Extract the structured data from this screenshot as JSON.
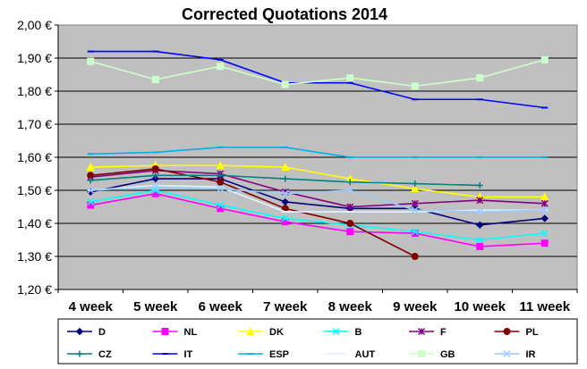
{
  "chart_data": {
    "type": "line",
    "title": "Corrected Quotations 2014",
    "xlabel": "",
    "ylabel": "",
    "ylim": [
      1.2,
      2.0
    ],
    "yticks": [
      "1,20 €",
      "1,30 €",
      "1,40 €",
      "1,50 €",
      "1,60 €",
      "1,70 €",
      "1,80 €",
      "1,90 €",
      "2,00 €"
    ],
    "ytick_values": [
      1.2,
      1.3,
      1.4,
      1.5,
      1.6,
      1.7,
      1.8,
      1.9,
      2.0
    ],
    "categories": [
      "4 week",
      "5 week",
      "6 week",
      "7 week",
      "8 week",
      "9 week",
      "10 week",
      "11 week"
    ],
    "grid": true,
    "plot_background": "#c0c0c0",
    "legend_position": "bottom",
    "series": [
      {
        "name": "D",
        "color": "#000080",
        "marker": "diamond",
        "values": [
          1.495,
          1.535,
          1.535,
          1.465,
          1.445,
          1.445,
          1.395,
          1.415
        ]
      },
      {
        "name": "NL",
        "color": "#ff00ff",
        "marker": "square",
        "values": [
          1.455,
          1.49,
          1.445,
          1.405,
          1.375,
          1.37,
          1.33,
          1.34
        ]
      },
      {
        "name": "DK",
        "color": "#ffff00",
        "marker": "triangle",
        "values": [
          1.57,
          1.575,
          1.575,
          1.57,
          1.535,
          1.505,
          1.48,
          1.48
        ]
      },
      {
        "name": "B",
        "color": "#00ffff",
        "marker": "x",
        "values": [
          1.465,
          1.5,
          1.455,
          1.415,
          1.395,
          1.375,
          1.35,
          1.37
        ]
      },
      {
        "name": "F",
        "color": "#800080",
        "marker": "star",
        "values": [
          1.54,
          1.56,
          1.55,
          1.495,
          1.45,
          1.46,
          1.47,
          1.46
        ]
      },
      {
        "name": "PL",
        "color": "#800000",
        "marker": "circle",
        "values": [
          1.545,
          1.565,
          1.525,
          1.445,
          1.4,
          1.3,
          null,
          null
        ]
      },
      {
        "name": "CZ",
        "color": "#008080",
        "marker": "plus",
        "values": [
          1.53,
          1.545,
          1.545,
          1.535,
          1.525,
          1.52,
          1.515,
          null
        ]
      },
      {
        "name": "IT",
        "color": "#0000ff",
        "marker": "dash",
        "values": [
          1.92,
          1.92,
          1.895,
          1.825,
          1.825,
          1.775,
          1.775,
          1.75
        ]
      },
      {
        "name": "ESP",
        "color": "#00b0f0",
        "marker": "dash",
        "values": [
          1.61,
          1.615,
          1.63,
          1.63,
          1.6,
          1.6,
          1.6,
          1.6
        ]
      },
      {
        "name": "AUT",
        "color": "#e0f4ff",
        "marker": "dash",
        "values": [
          1.5,
          1.515,
          1.51,
          1.435,
          1.435,
          1.435,
          1.44,
          1.44
        ]
      },
      {
        "name": "GB",
        "color": "#ccffcc",
        "marker": "square",
        "values": [
          1.89,
          1.835,
          1.875,
          1.82,
          1.84,
          1.815,
          1.84,
          1.895
        ]
      },
      {
        "name": "IR",
        "color": "#99ccff",
        "marker": "x",
        "values": [
          1.5,
          1.51,
          1.505,
          1.49,
          1.5,
          1.44,
          1.435,
          1.44
        ]
      }
    ]
  }
}
